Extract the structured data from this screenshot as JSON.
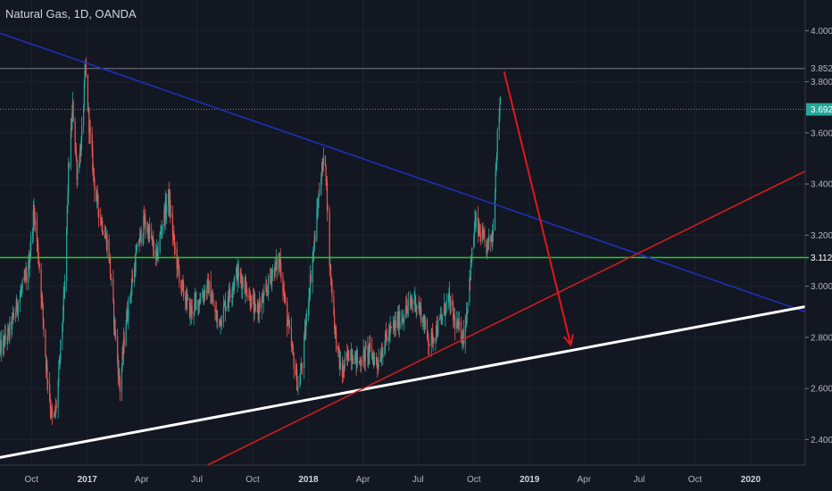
{
  "colors": {
    "background": "#131722",
    "up": "#26a69a",
    "down": "#ef5350",
    "axis_text": "#b2b5be",
    "blue_line": "#1f2fb8",
    "red_line": "#d01c1c",
    "white_line": "#ffffff",
    "green_line": "#1ed11e",
    "arrow": "#e01818",
    "last_price_tag": "#26a69a",
    "grid": "#1e222d"
  },
  "chart_data": {
    "type": "candlestick",
    "title": "Natural Gas, 1D, OANDA",
    "x_range": [
      "2016-08-10",
      "2020-03-31"
    ],
    "x_tick_labels": [
      {
        "date": "2016-10-01",
        "label": "Oct",
        "bold": false
      },
      {
        "date": "2017-01-01",
        "label": "2017",
        "bold": true
      },
      {
        "date": "2017-04-01",
        "label": "Apr",
        "bold": false
      },
      {
        "date": "2017-07-01",
        "label": "Jul",
        "bold": false
      },
      {
        "date": "2017-10-01",
        "label": "Oct",
        "bold": false
      },
      {
        "date": "2018-01-01",
        "label": "2018",
        "bold": true
      },
      {
        "date": "2018-04-01",
        "label": "Apr",
        "bold": false
      },
      {
        "date": "2018-07-01",
        "label": "Jul",
        "bold": false
      },
      {
        "date": "2018-10-01",
        "label": "Oct",
        "bold": false
      },
      {
        "date": "2019-01-01",
        "label": "2019",
        "bold": true
      },
      {
        "date": "2019-04-01",
        "label": "Apr",
        "bold": false
      },
      {
        "date": "2019-07-01",
        "label": "Jul",
        "bold": false
      },
      {
        "date": "2019-10-01",
        "label": "Oct",
        "bold": false
      },
      {
        "date": "2020-01-01",
        "label": "2020",
        "bold": true
      }
    ],
    "y_range": [
      2.3,
      4.12
    ],
    "y_ticks": [
      2.4,
      2.6,
      2.8,
      3.0,
      3.2,
      3.4,
      3.6,
      3.8,
      4.0
    ],
    "y_tick_labels": [
      "2.400",
      "2.600",
      "2.800",
      "3.000",
      "3.200",
      "3.400",
      "3.600",
      "3.800",
      "4.000"
    ],
    "price_path": [
      [
        "2016-08-10",
        2.75
      ],
      [
        "2016-08-25",
        2.82
      ],
      [
        "2016-09-10",
        2.95
      ],
      [
        "2016-09-25",
        3.05
      ],
      [
        "2016-10-05",
        3.3
      ],
      [
        "2016-10-15",
        3.05
      ],
      [
        "2016-10-25",
        2.7
      ],
      [
        "2016-11-05",
        2.45
      ],
      [
        "2016-11-12",
        2.55
      ],
      [
        "2016-11-25",
        3.0
      ],
      [
        "2016-12-01",
        3.45
      ],
      [
        "2016-12-08",
        3.7
      ],
      [
        "2016-12-15",
        3.45
      ],
      [
        "2016-12-22",
        3.55
      ],
      [
        "2016-12-29",
        3.85
      ],
      [
        "2017-01-05",
        3.6
      ],
      [
        "2017-01-15",
        3.35
      ],
      [
        "2017-01-25",
        3.25
      ],
      [
        "2017-02-05",
        3.15
      ],
      [
        "2017-02-15",
        2.85
      ],
      [
        "2017-02-24",
        2.6
      ],
      [
        "2017-03-05",
        2.85
      ],
      [
        "2017-03-15",
        3.0
      ],
      [
        "2017-03-25",
        3.15
      ],
      [
        "2017-04-05",
        3.25
      ],
      [
        "2017-04-15",
        3.2
      ],
      [
        "2017-04-25",
        3.1
      ],
      [
        "2017-05-05",
        3.25
      ],
      [
        "2017-05-15",
        3.35
      ],
      [
        "2017-05-25",
        3.15
      ],
      [
        "2017-06-05",
        3.0
      ],
      [
        "2017-06-20",
        2.9
      ],
      [
        "2017-07-05",
        2.95
      ],
      [
        "2017-07-20",
        3.0
      ],
      [
        "2017-08-05",
        2.85
      ],
      [
        "2017-08-20",
        2.95
      ],
      [
        "2017-09-05",
        3.05
      ],
      [
        "2017-09-20",
        3.0
      ],
      [
        "2017-10-05",
        2.9
      ],
      [
        "2017-10-20",
        2.95
      ],
      [
        "2017-11-01",
        3.05
      ],
      [
        "2017-11-15",
        3.1
      ],
      [
        "2017-11-25",
        2.9
      ],
      [
        "2017-12-05",
        2.75
      ],
      [
        "2017-12-15",
        2.6
      ],
      [
        "2017-12-22",
        2.7
      ],
      [
        "2018-01-03",
        3.0
      ],
      [
        "2018-01-12",
        3.2
      ],
      [
        "2018-01-22",
        3.45
      ],
      [
        "2018-01-29",
        3.5
      ],
      [
        "2018-02-05",
        3.1
      ],
      [
        "2018-02-15",
        2.8
      ],
      [
        "2018-02-25",
        2.65
      ],
      [
        "2018-03-10",
        2.75
      ],
      [
        "2018-03-25",
        2.7
      ],
      [
        "2018-04-10",
        2.75
      ],
      [
        "2018-04-25",
        2.7
      ],
      [
        "2018-05-10",
        2.8
      ],
      [
        "2018-05-25",
        2.85
      ],
      [
        "2018-06-10",
        2.9
      ],
      [
        "2018-06-25",
        2.95
      ],
      [
        "2018-07-05",
        2.9
      ],
      [
        "2018-07-20",
        2.78
      ],
      [
        "2018-08-05",
        2.85
      ],
      [
        "2018-08-20",
        2.95
      ],
      [
        "2018-09-01",
        2.85
      ],
      [
        "2018-09-15",
        2.8
      ],
      [
        "2018-09-25",
        3.05
      ],
      [
        "2018-10-03",
        3.25
      ],
      [
        "2018-10-12",
        3.2
      ],
      [
        "2018-10-22",
        3.15
      ],
      [
        "2018-11-01",
        3.2
      ],
      [
        "2018-11-08",
        3.55
      ],
      [
        "2018-11-14",
        3.75
      ]
    ],
    "last_price": 3.692,
    "annotations": {
      "horizontal_lines": [
        {
          "name": "high-line",
          "price": 3.852,
          "label": "3.852",
          "color": "#787b86"
        },
        {
          "name": "last-price-line",
          "price": 3.692,
          "label": "3.692",
          "color": "#26a69a",
          "dotted": true
        },
        {
          "name": "support-resistance-line",
          "price": 3.112,
          "label": "3.112",
          "color": "#1ed11e"
        }
      ],
      "trend_lines": [
        {
          "name": "blue-downtrend-line",
          "color": "#1f2fb8",
          "p1": [
            "2016-08-10",
            3.99
          ],
          "p2": [
            "2020-03-31",
            2.9
          ]
        },
        {
          "name": "white-uptrend-line",
          "color": "#ffffff",
          "p1": [
            "2016-08-10",
            2.33
          ],
          "p2": [
            "2020-03-31",
            2.92
          ]
        },
        {
          "name": "red-uptrend-line",
          "color": "#d01c1c",
          "p1": [
            "2017-07-01",
            2.28
          ],
          "p2": [
            "2020-03-31",
            3.45
          ]
        }
      ],
      "arrows": [
        {
          "name": "projection-arrow",
          "color": "#e01818",
          "from": [
            "2018-11-20",
            3.84
          ],
          "to": [
            "2019-03-10",
            2.77
          ]
        }
      ]
    }
  }
}
